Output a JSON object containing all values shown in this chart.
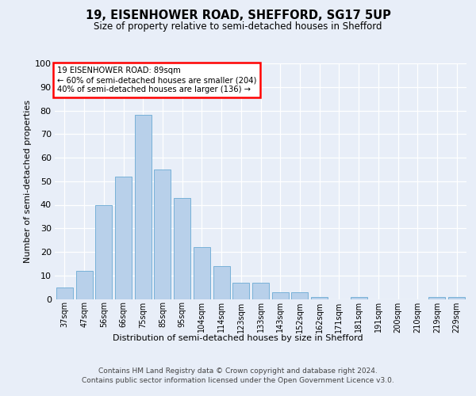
{
  "title1": "19, EISENHOWER ROAD, SHEFFORD, SG17 5UP",
  "title2": "Size of property relative to semi-detached houses in Shefford",
  "xlabel": "Distribution of semi-detached houses by size in Shefford",
  "ylabel": "Number of semi-detached properties",
  "categories": [
    "37sqm",
    "47sqm",
    "56sqm",
    "66sqm",
    "75sqm",
    "85sqm",
    "95sqm",
    "104sqm",
    "114sqm",
    "123sqm",
    "133sqm",
    "143sqm",
    "152sqm",
    "162sqm",
    "171sqm",
    "181sqm",
    "191sqm",
    "200sqm",
    "210sqm",
    "219sqm",
    "229sqm"
  ],
  "values": [
    5,
    12,
    40,
    52,
    78,
    55,
    43,
    22,
    14,
    7,
    7,
    3,
    3,
    1,
    0,
    1,
    0,
    0,
    0,
    1,
    1
  ],
  "bar_color": "#b8d0ea",
  "bar_edge_color": "#6aaad4",
  "annotation_box_text": [
    "19 EISENHOWER ROAD: 89sqm",
    "← 60% of semi-detached houses are smaller (204)",
    "40% of semi-detached houses are larger (136) →"
  ],
  "annotation_box_color": "white",
  "annotation_box_edge_color": "red",
  "ylim": [
    0,
    100
  ],
  "yticks": [
    0,
    10,
    20,
    30,
    40,
    50,
    60,
    70,
    80,
    90,
    100
  ],
  "footer1": "Contains HM Land Registry data © Crown copyright and database right 2024.",
  "footer2": "Contains public sector information licensed under the Open Government Licence v3.0.",
  "bg_color": "#e8eef8",
  "plot_bg_color": "#e8eef8"
}
